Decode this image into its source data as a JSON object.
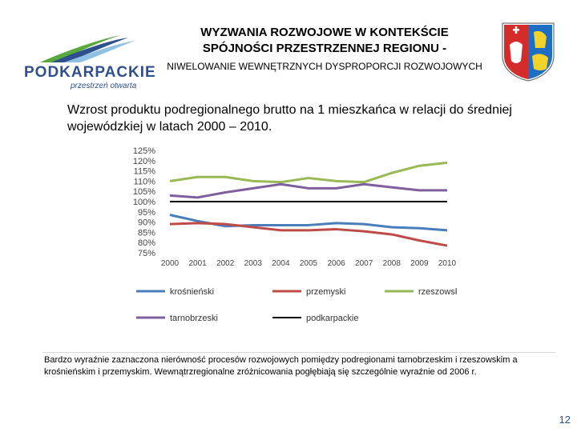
{
  "header": {
    "title": "WYZWANIA ROZWOJOWE W KONTEKŚCIE SPÓJNOŚCI PRZESTRZENNEJ REGIONU -",
    "subtitle": "NIWELOWANIE WEWNĘTRZNYCH DYSPROPORCJI ROZWOJOWYCH"
  },
  "logo": {
    "word": "PODKARPACKIE",
    "tagline": "przestrzeń otwarta"
  },
  "heading": "Wzrost produktu podregionalnego brutto na 1 mieszkańca w relacji do średniej wojewódzkiej w latach 2000 – 2010.",
  "note": "Bardzo wyraźnie zaznaczona nierówność procesów rozwojowych pomiędzy podregionami tarnobrzeskim i rzeszowskim a krośnieńskim i przemyskim. Wewnątrzregionalne zróżnicowania pogłębiają się szczególnie wyraźnie  od 2006 r.",
  "page_number": "12",
  "colors": {
    "krosnienski": "#4a7ebb",
    "przemyski": "#be4b48",
    "rzeszowski": "#98b954",
    "tarnobrzeski": "#7e5f9f",
    "podkarpackie": "#000000",
    "logo_blue": "#2f4f8f",
    "logo_green": "#5aa83c",
    "crest_red": "#d42b2b",
    "crest_blue": "#1e6fc4"
  },
  "chart_data": {
    "type": "line",
    "title": "",
    "xlabel": "",
    "ylabel": "",
    "x": [
      "2000",
      "2001",
      "2002",
      "2003",
      "2004",
      "2005",
      "2006",
      "2007",
      "2008",
      "2009",
      "2010"
    ],
    "ylim": [
      75,
      125
    ],
    "yticks": [
      "75%",
      "80%",
      "85%",
      "90%",
      "95%",
      "100%",
      "105%",
      "110%",
      "115%",
      "120%",
      "125%"
    ],
    "series": [
      {
        "key": "krosnienski",
        "name": "krośnieński",
        "values": [
          93.5,
          90.5,
          88,
          88.5,
          88.5,
          88.5,
          89.5,
          89,
          87.5,
          87,
          86
        ]
      },
      {
        "key": "przemyski",
        "name": "przemyski",
        "values": [
          89,
          89.5,
          89,
          87.5,
          86,
          86,
          86.5,
          85.5,
          84,
          81,
          78.5
        ]
      },
      {
        "key": "rzeszowski",
        "name": "rzeszowski",
        "values": [
          110,
          112,
          112,
          110,
          109.5,
          111.5,
          110,
          109.5,
          114,
          117.5,
          119
        ]
      },
      {
        "key": "tarnobrzeski",
        "name": "tarnobrzeski",
        "values": [
          103,
          102,
          104.5,
          106.5,
          108.5,
          106.5,
          106.5,
          108.5,
          107,
          105.5,
          105.5
        ]
      },
      {
        "key": "podkarpackie",
        "name": "podkarpackie",
        "values": [
          100,
          100,
          100,
          100,
          100,
          100,
          100,
          100,
          100,
          100,
          100
        ]
      }
    ],
    "legend": [
      "krośnieński",
      "przemyski",
      "rzeszowski",
      "tarnobrzeski",
      "podkarpackie"
    ],
    "legend_position": "bottom"
  }
}
